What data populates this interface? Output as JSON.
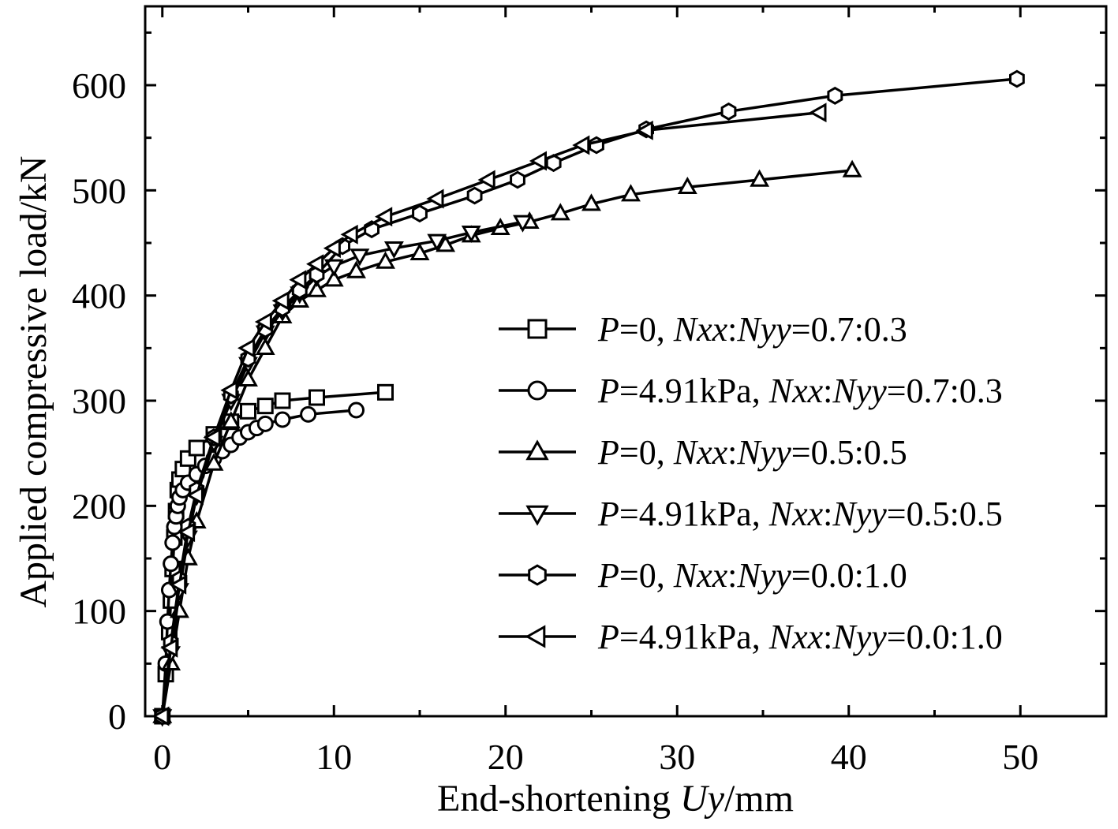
{
  "chart_data": {
    "type": "line",
    "xlabel": {
      "prefix": "End-shortening ",
      "italic": "Uy",
      "suffix": "/mm"
    },
    "ylabel": "Applied compressive load/kN",
    "xlim": [
      -1,
      55
    ],
    "ylim": [
      0,
      675
    ],
    "xticks": [
      0,
      10,
      20,
      30,
      40,
      50
    ],
    "xtick_labels": [
      "0",
      "10",
      "20",
      "30",
      "40",
      "50"
    ],
    "yticks": [
      0,
      100,
      200,
      300,
      400,
      500,
      600
    ],
    "ytick_labels": [
      "0",
      "100",
      "200",
      "300",
      "400",
      "500",
      "600"
    ],
    "grid": false,
    "legend_position": "bottom-right",
    "series": [
      {
        "name": "P=0, Nxx:Nyy=0.7:0.3",
        "name_parts": [
          [
            "P",
            true
          ],
          [
            "=0, ",
            false
          ],
          [
            "Nxx",
            true
          ],
          [
            ":",
            false
          ],
          [
            "Nyy",
            true
          ],
          [
            "=0.7:0.3",
            false
          ]
        ],
        "marker": "square",
        "x": [
          0,
          0.2,
          0.4,
          0.5,
          0.6,
          0.7,
          0.8,
          0.9,
          1.0,
          1.2,
          1.5,
          2.0,
          3.0,
          4.0,
          5.0,
          6.0,
          7.0,
          9.0,
          13.0
        ],
        "y": [
          0,
          40,
          80,
          110,
          140,
          170,
          195,
          215,
          225,
          235,
          245,
          255,
          268,
          280,
          290,
          295,
          300,
          303,
          308
        ]
      },
      {
        "name": "P=4.91kPa, Nxx:Nyy=0.7:0.3",
        "name_parts": [
          [
            "P",
            true
          ],
          [
            "=4.91kPa, ",
            false
          ],
          [
            "Nxx",
            true
          ],
          [
            ":",
            false
          ],
          [
            "Nyy",
            true
          ],
          [
            "=0.7:0.3",
            false
          ]
        ],
        "marker": "circle",
        "x": [
          0,
          0.2,
          0.3,
          0.4,
          0.5,
          0.6,
          0.7,
          0.8,
          0.9,
          1.0,
          1.2,
          1.5,
          2.0,
          2.5,
          3.0,
          3.5,
          4.0,
          4.5,
          5.0,
          5.5,
          6.0,
          7.0,
          8.5,
          11.3
        ],
        "y": [
          0,
          50,
          90,
          120,
          145,
          165,
          180,
          190,
          200,
          208,
          215,
          222,
          230,
          238,
          245,
          252,
          258,
          265,
          270,
          274,
          278,
          282,
          287,
          291
        ]
      },
      {
        "name": "P=0, Nxx:Nyy=0.5:0.5",
        "name_parts": [
          [
            "P",
            true
          ],
          [
            "=0, ",
            false
          ],
          [
            "Nxx",
            true
          ],
          [
            ":",
            false
          ],
          [
            "Nyy",
            true
          ],
          [
            "=0.5:0.5",
            false
          ]
        ],
        "marker": "triangle-up",
        "x": [
          0,
          0.5,
          1.0,
          1.5,
          2.0,
          3.0,
          4.0,
          5.0,
          6.0,
          7.0,
          8.0,
          9.0,
          10.0,
          11.3,
          13.0,
          15.0,
          16.5,
          18.0,
          19.7,
          21.4,
          23.2,
          25.0,
          27.3,
          30.6,
          34.8,
          40.2
        ],
        "y": [
          0,
          50,
          100,
          150,
          185,
          240,
          280,
          320,
          350,
          380,
          395,
          405,
          415,
          423,
          432,
          440,
          448,
          457,
          464,
          470,
          478,
          487,
          496,
          503,
          510,
          519
        ]
      },
      {
        "name": "P=4.91kPa, Nxx:Nyy=0.5:0.5",
        "name_parts": [
          [
            "P",
            true
          ],
          [
            "=4.91kPa, ",
            false
          ],
          [
            "Nxx",
            true
          ],
          [
            ":",
            false
          ],
          [
            "Nyy",
            true
          ],
          [
            "=0.5:0.5",
            false
          ]
        ],
        "marker": "triangle-down",
        "x": [
          0,
          0.5,
          1.0,
          1.5,
          2.0,
          3.0,
          4.0,
          5.0,
          6.0,
          7.0,
          8.0,
          9.0,
          10.0,
          11.5,
          13.5,
          16.0,
          18.0,
          21.0
        ],
        "y": [
          0,
          60,
          120,
          170,
          210,
          260,
          300,
          335,
          365,
          385,
          402,
          418,
          428,
          438,
          445,
          452,
          460,
          470
        ]
      },
      {
        "name": "P=0, Nxx:Nyy=0.0:1.0",
        "name_parts": [
          [
            "P",
            true
          ],
          [
            "=0, ",
            false
          ],
          [
            "Nxx",
            true
          ],
          [
            ":",
            false
          ],
          [
            "Nyy",
            true
          ],
          [
            "=0.0:1.0",
            false
          ]
        ],
        "marker": "hexagon",
        "x": [
          0,
          0.5,
          1.0,
          1.5,
          2.0,
          3.0,
          4.0,
          5.0,
          6.0,
          7.0,
          8.0,
          9.0,
          10.5,
          12.2,
          15.0,
          18.2,
          20.7,
          22.8,
          25.3,
          28.2,
          33.0,
          39.2,
          49.8
        ],
        "y": [
          0,
          70,
          130,
          180,
          215,
          265,
          305,
          340,
          368,
          388,
          405,
          420,
          447,
          463,
          478,
          495,
          510,
          526,
          543,
          558,
          575,
          590,
          606
        ]
      },
      {
        "name": "P=4.91kPa, Nxx:Nyy=0.0:1.0",
        "name_parts": [
          [
            "P",
            true
          ],
          [
            "=4.91kPa, ",
            false
          ],
          [
            "Nxx",
            true
          ],
          [
            ":",
            false
          ],
          [
            "Nyy",
            true
          ],
          [
            "=0.0:1.0",
            false
          ]
        ],
        "marker": "triangle-left",
        "x": [
          0,
          0.5,
          1.0,
          1.5,
          2.0,
          3.0,
          4.0,
          5.0,
          6.0,
          7.0,
          8.0,
          9.0,
          10.0,
          11.0,
          13.0,
          16.0,
          19.0,
          22.0,
          24.5,
          28.2,
          38.3
        ],
        "y": [
          0,
          65,
          125,
          175,
          210,
          265,
          310,
          350,
          375,
          395,
          415,
          430,
          445,
          458,
          475,
          492,
          510,
          528,
          543,
          557,
          574
        ]
      }
    ]
  }
}
